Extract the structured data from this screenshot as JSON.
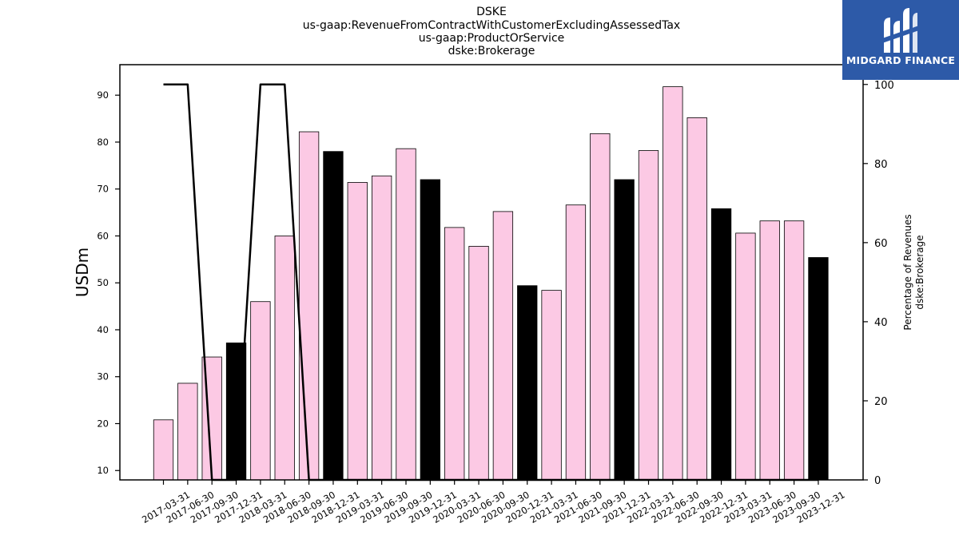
{
  "title_lines": [
    "DSKE",
    "us-gaap:RevenueFromContractWithCustomerExcludingAssessedTax",
    "us-gaap:ProductOrService",
    "dske:Brokerage"
  ],
  "logo": {
    "text": "MIDGARD FINANCE",
    "color": "#2d5aa8"
  },
  "chart_data": {
    "type": "bar",
    "ylabel_left": "USDm",
    "ylabel_right_lines": [
      "Percentage of Revenues",
      "dske:Brokerage"
    ],
    "ylim_left": [
      8,
      96.5
    ],
    "ylim_right": [
      0,
      105
    ],
    "yticks_left": [
      10,
      20,
      30,
      40,
      50,
      60,
      70,
      80,
      90
    ],
    "yticks_right": [
      0,
      20,
      40,
      60,
      80,
      100
    ],
    "categories": [
      "2017-03-31",
      "2017-06-30",
      "2017-09-30",
      "2017-12-31",
      "2018-03-31",
      "2018-06-30",
      "2018-09-30",
      "2018-12-31",
      "2019-03-31",
      "2019-06-30",
      "2019-09-30",
      "2019-12-31",
      "2020-03-31",
      "2020-06-30",
      "2020-09-30",
      "2020-12-31",
      "2021-03-31",
      "2021-06-30",
      "2021-09-30",
      "2021-12-31",
      "2022-03-31",
      "2022-06-30",
      "2022-09-30",
      "2022-12-31",
      "2023-03-31",
      "2023-06-30",
      "2023-09-30",
      "2023-12-31"
    ],
    "series": [
      {
        "type": "bar",
        "values": [
          20.8,
          28.6,
          34.2,
          37.2,
          46.0,
          60.0,
          82.2,
          78.0,
          71.4,
          72.8,
          78.6,
          72.0,
          61.8,
          57.8,
          65.2,
          49.4,
          48.4,
          66.6,
          81.8,
          72.0,
          78.2,
          91.8,
          85.2,
          65.8,
          60.6,
          63.2,
          63.2,
          55.4
        ],
        "colors": [
          "#fcc9e4",
          "#fcc9e4",
          "#fcc9e4",
          "#000000",
          "#fcc9e4",
          "#fcc9e4",
          "#fcc9e4",
          "#000000",
          "#fcc9e4",
          "#fcc9e4",
          "#fcc9e4",
          "#000000",
          "#fcc9e4",
          "#fcc9e4",
          "#fcc9e4",
          "#000000",
          "#fcc9e4",
          "#fcc9e4",
          "#fcc9e4",
          "#000000",
          "#fcc9e4",
          "#fcc9e4",
          "#fcc9e4",
          "#000000",
          "#fcc9e4",
          "#fcc9e4",
          "#fcc9e4",
          "#000000"
        ]
      },
      {
        "type": "line",
        "axis": "right",
        "color": "#000000",
        "values": [
          100,
          100,
          0,
          0,
          100,
          100,
          0,
          0,
          0,
          0,
          0,
          0,
          0,
          0,
          0,
          0,
          0,
          0,
          0,
          0,
          0,
          0,
          0,
          0,
          0,
          0,
          0,
          0
        ]
      }
    ]
  }
}
